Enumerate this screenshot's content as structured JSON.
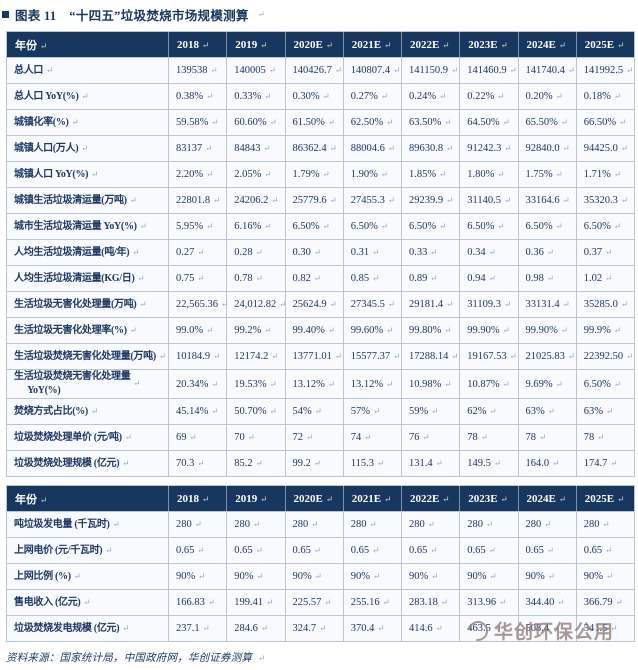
{
  "title": {
    "text": "图表 11　“十四五”垃圾焚烧市场规模测算"
  },
  "marks": {
    "return": "↵"
  },
  "table1": {
    "header": [
      "年份",
      "2018",
      "2019",
      "2020E",
      "2021E",
      "2022E",
      "2023E",
      "2024E",
      "2025E"
    ],
    "rows": [
      {
        "label": "总人口",
        "values": [
          "139538",
          "140005",
          "140426.7",
          "140807.4",
          "141150.9",
          "141460.9",
          "141740.4",
          "141992.5"
        ]
      },
      {
        "label": "总人口 YoY(%)",
        "values": [
          "0.38%",
          "0.33%",
          "0.30%",
          "0.27%",
          "0.24%",
          "0.22%",
          "0.20%",
          "0.18%"
        ]
      },
      {
        "label": "城镇化率(%)",
        "values": [
          "59.58%",
          "60.60%",
          "61.50%",
          "62.50%",
          "63.50%",
          "64.50%",
          "65.50%",
          "66.50%"
        ]
      },
      {
        "label": "城镇人口(万人)",
        "values": [
          "83137",
          "84843",
          "86362.4",
          "88004.6",
          "89630.8",
          "91242.3",
          "92840.0",
          "94425.0"
        ]
      },
      {
        "label": "城镇人口 YoY(%)",
        "values": [
          "2.20%",
          "2.05%",
          "1.79%",
          "1.90%",
          "1.85%",
          "1.80%",
          "1.75%",
          "1.71%"
        ]
      },
      {
        "label": "城镇生活垃圾清运量(万吨)",
        "values": [
          "22801.8",
          "24206.2",
          "25779.6",
          "27455.3",
          "29239.9",
          "31140.5",
          "33164.6",
          "35320.3"
        ]
      },
      {
        "label": "城市生活垃圾清运量 YoY(%)",
        "values": [
          "5.95%",
          "6.16%",
          "6.50%",
          "6.50%",
          "6.50%",
          "6.50%",
          "6.50%",
          "6.50%"
        ]
      },
      {
        "label": "人均生活垃圾清运量(吨/年)",
        "values": [
          "0.27",
          "0.28",
          "0.30",
          "0.31",
          "0.33",
          "0.34",
          "0.36",
          "0.37"
        ]
      },
      {
        "label": "人均生活垃圾清运量(KG/日)",
        "values": [
          "0.75",
          "0.78",
          "0.82",
          "0.85",
          "0.89",
          "0.94",
          "0.98",
          "1.02"
        ]
      },
      {
        "label": "生活垃圾无害化处理量(万吨)",
        "values": [
          "22,565.36",
          "24,012.82",
          "25624.9",
          "27345.5",
          "29181.4",
          "31109.3",
          "33131.4",
          "35285.0"
        ]
      },
      {
        "label": "生活垃圾无害化处理率(%)",
        "values": [
          "99.0%",
          "99.2%",
          "99.40%",
          "99.60%",
          "99.80%",
          "99.90%",
          "99.90%",
          "99.9%"
        ]
      },
      {
        "label": "生活垃圾焚烧无害化处理量(万吨)",
        "values": [
          "10184.9",
          "12174.2",
          "13771.01",
          "15577.37",
          "17288.14",
          "19167.53",
          "21025.83",
          "22392.50"
        ]
      },
      {
        "label": "生活垃圾焚烧无害化处理量\n      YoY(%)",
        "values": [
          "20.34%",
          "19.53%",
          "13.12%",
          "13.12%",
          "10.98%",
          "10.87%",
          "9.69%",
          "6.50%"
        ]
      },
      {
        "label": "焚烧方式占比(%)",
        "values": [
          "45.14%",
          "50.70%",
          "54%",
          "57%",
          "59%",
          "62%",
          "63%",
          "63%"
        ]
      },
      {
        "label": "垃圾焚烧处理单价 (元/吨)",
        "values": [
          "69",
          "70",
          "72",
          "74",
          "76",
          "78",
          "78",
          "78"
        ]
      },
      {
        "label": "垃圾焚烧处理规模 (亿元)",
        "values": [
          "70.3",
          "85.2",
          "99.2",
          "115.3",
          "131.4",
          "149.5",
          "164.0",
          "174.7"
        ]
      }
    ]
  },
  "table2": {
    "header": [
      "年份",
      "2018",
      "2019",
      "2020E",
      "2021E",
      "2022E",
      "2023E",
      "2024E",
      "2025E"
    ],
    "rows": [
      {
        "label": "吨垃圾发电量 (千瓦时)",
        "values": [
          "280",
          "280",
          "280",
          "280",
          "280",
          "280",
          "280",
          "280"
        ]
      },
      {
        "label": "上网电价 (元/千瓦时)",
        "values": [
          "0.65",
          "0.65",
          "0.65",
          "0.65",
          "0.65",
          "0.65",
          "0.65",
          "0.65"
        ]
      },
      {
        "label": "上网比例 (%)",
        "values": [
          "90%",
          "90%",
          "90%",
          "90%",
          "90%",
          "90%",
          "90%",
          "90%"
        ]
      },
      {
        "label": "售电收入 (亿元)",
        "values": [
          "166.83",
          "199.41",
          "225.57",
          "255.16",
          "283.18",
          "313.96",
          "344.40",
          "366.79"
        ]
      },
      {
        "label": "垃圾焚烧发电规模 (亿元)",
        "values": [
          "237.1",
          "284.6",
          "324.7",
          "370.4",
          "414.6",
          "463.5",
          "508.4",
          "541.5"
        ]
      }
    ]
  },
  "source": "资料来源：国家统计局，中国政府网，华创证券测算",
  "watermark": {
    "text": "华创环保公用"
  },
  "colors": {
    "header_bg": "#17375E",
    "header_text": "#FFFFFF",
    "text": "#1F3864",
    "grid": "#B9C4D4",
    "row_bg": "#F8FAFD",
    "mark": "#8FA6C6",
    "title": "#17375E",
    "source": "#17375E",
    "watermark": "#8E7676",
    "page_bg": "#FFFFFF"
  }
}
